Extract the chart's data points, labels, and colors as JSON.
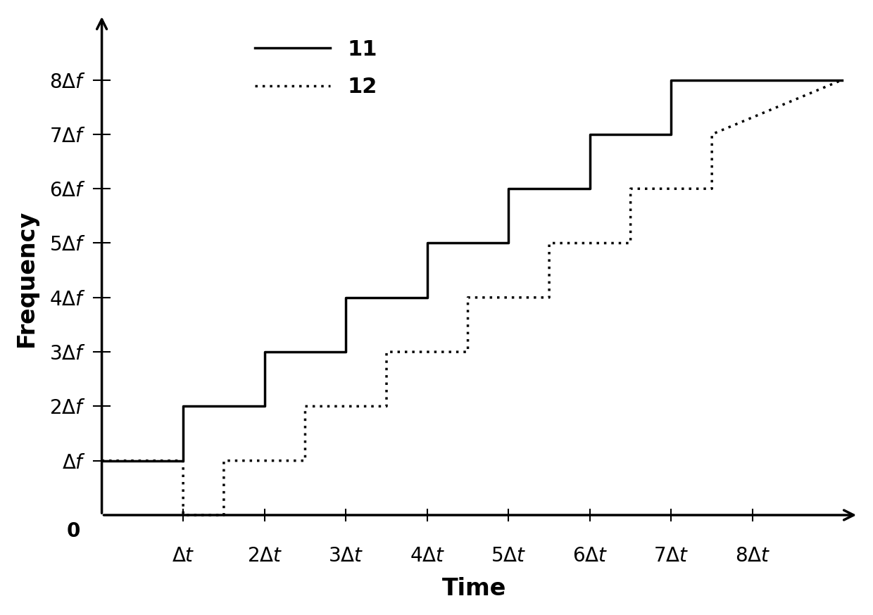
{
  "xlabel": "Time",
  "ylabel": "Frequency",
  "xlabel_fontsize": 24,
  "ylabel_fontsize": 24,
  "background_color": "#ffffff",
  "line_color": "#000000",
  "line_width": 2.5,
  "legend_labels": [
    "11",
    "12"
  ],
  "ytick_labels": [
    "Δf",
    "2Δf",
    "3Δf",
    "4Δf",
    "5Δf",
    "6Δf",
    "7Δf",
    "8Δf"
  ],
  "xtick_labels": [
    "Δt",
    "2Δt",
    "3Δt",
    "4Δt",
    "5Δt",
    "6Δt",
    "7Δt",
    "8Δt"
  ],
  "xlim": [
    -0.15,
    9.3
  ],
  "ylim": [
    -0.5,
    9.2
  ],
  "tick_fontsize": 20,
  "legend_fontsize": 22,
  "x11": [
    0,
    1,
    1,
    2,
    2,
    3,
    3,
    4,
    4,
    5,
    5,
    6,
    6,
    7,
    7,
    9.1
  ],
  "y11": [
    1,
    1,
    2,
    2,
    3,
    3,
    4,
    4,
    5,
    5,
    6,
    6,
    7,
    7,
    8,
    8
  ],
  "x12": [
    0,
    1,
    1,
    1.5,
    1.5,
    2.5,
    2.5,
    3.5,
    3.5,
    4.5,
    4.5,
    5.5,
    5.5,
    6.5,
    6.5,
    7.5,
    7.5,
    9.1
  ],
  "y12": [
    1,
    1,
    0,
    0,
    1,
    1,
    2,
    2,
    3,
    3,
    4,
    4,
    5,
    5,
    6,
    6,
    7,
    8
  ]
}
